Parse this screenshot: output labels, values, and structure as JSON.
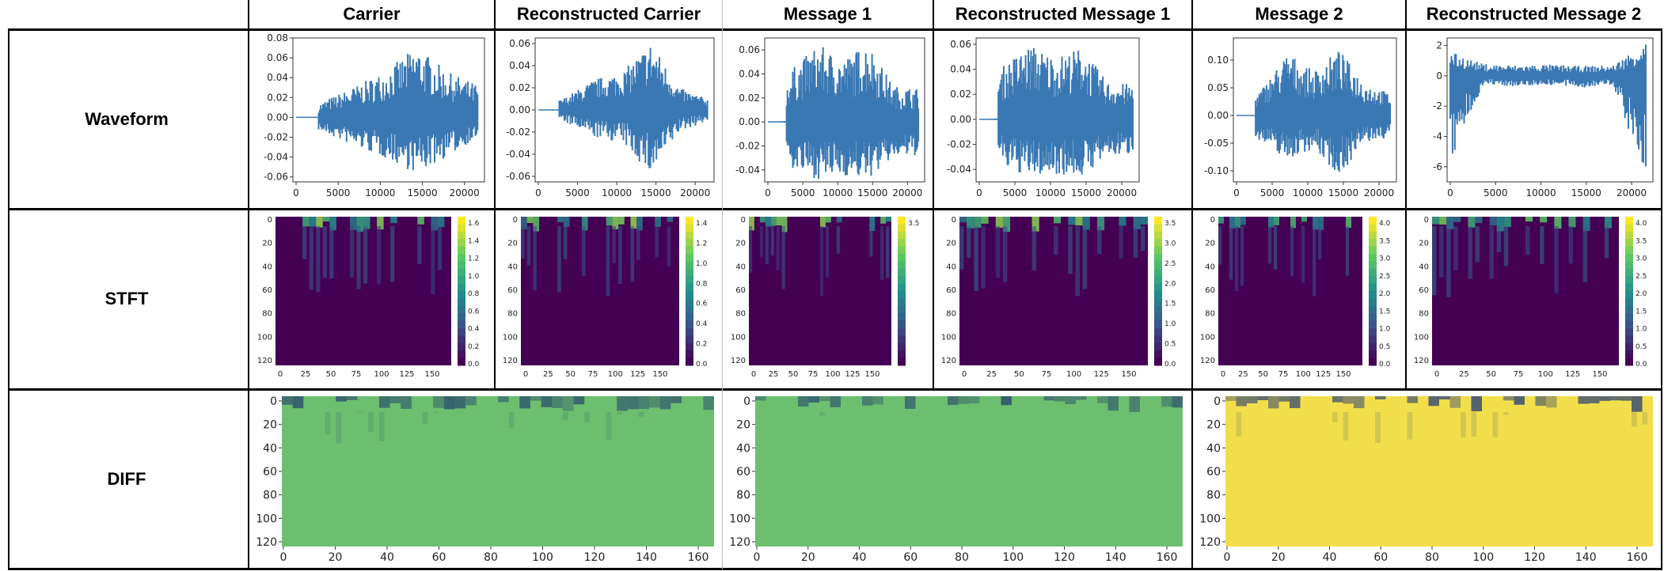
{
  "columns": [
    "Carrier",
    "Reconstructed Carrier",
    "Message 1",
    "Reconstructed Message 1",
    "Message 2",
    "Reconstructed Message 2"
  ],
  "rows": [
    "Waveform",
    "STFT",
    "DIFF"
  ],
  "colors": {
    "waveform": "#3a78b4",
    "viridis_low": "#440154",
    "viridis_mid": "#21918c",
    "viridis_high": "#fde725",
    "diff_green": "#6cbf6e",
    "diff_yellow": "#f1de4a"
  },
  "chart_data": [
    {
      "type": "line",
      "panel": "Carrier waveform",
      "xlim": [
        0,
        22000
      ],
      "ylim": [
        -0.065,
        0.08
      ],
      "xticks": [
        "0",
        "5000",
        "10000",
        "15000",
        "20000"
      ],
      "yticks": [
        "0.08",
        "0.06",
        "0.04",
        "0.02",
        "0.00",
        "-0.02",
        "-0.04",
        "-0.06"
      ],
      "envelope_pos": [
        0,
        0.018,
        0.032,
        0.048,
        0.072,
        0.046,
        0.033
      ],
      "envelope_neg": [
        0,
        -0.017,
        -0.03,
        -0.042,
        -0.057,
        -0.04,
        -0.02
      ]
    },
    {
      "type": "line",
      "panel": "Reconstructed Carrier waveform",
      "xlim": [
        0,
        22000
      ],
      "ylim": [
        -0.065,
        0.065
      ],
      "xticks": [
        "0",
        "5000",
        "10000",
        "15000",
        "20000"
      ],
      "yticks": [
        "0.06",
        "0.04",
        "0.02",
        "0.00",
        "-0.02",
        "-0.04",
        "-0.06"
      ],
      "envelope_pos": [
        0,
        0.012,
        0.028,
        0.035,
        0.062,
        0.02,
        0.01
      ],
      "envelope_neg": [
        0,
        -0.012,
        -0.025,
        -0.03,
        -0.06,
        -0.02,
        -0.01
      ]
    },
    {
      "type": "line",
      "panel": "Message 1 waveform",
      "xlim": [
        0,
        22000
      ],
      "ylim": [
        -0.05,
        0.07
      ],
      "xticks": [
        "0",
        "5000",
        "10000",
        "15000",
        "20000"
      ],
      "yticks": [
        "0.06",
        "0.04",
        "0.02",
        "0.00",
        "-0.02",
        "-0.04"
      ],
      "envelope_pos": [
        0,
        0.045,
        0.065,
        0.052,
        0.067,
        0.03,
        0.028
      ],
      "envelope_neg": [
        0,
        -0.04,
        -0.048,
        -0.045,
        -0.048,
        -0.03,
        -0.028
      ]
    },
    {
      "type": "line",
      "panel": "Reconstructed Message 1 waveform",
      "xlim": [
        0,
        22000
      ],
      "ylim": [
        -0.05,
        0.065
      ],
      "xticks": [
        "0",
        "5000",
        "10000",
        "15000",
        "20000"
      ],
      "yticks": [
        "0.06",
        "0.04",
        "0.02",
        "0.00",
        "-0.02",
        "-0.04"
      ],
      "envelope_pos": [
        0,
        0.045,
        0.06,
        0.05,
        0.058,
        0.03,
        0.028
      ],
      "envelope_neg": [
        0,
        -0.04,
        -0.046,
        -0.044,
        -0.046,
        -0.03,
        -0.028
      ]
    },
    {
      "type": "line",
      "panel": "Message 2 waveform",
      "xlim": [
        0,
        22000
      ],
      "ylim": [
        -0.12,
        0.14
      ],
      "xticks": [
        "0",
        "5000",
        "10000",
        "15000",
        "20000"
      ],
      "yticks": [
        "0.10",
        "0.05",
        "0.00",
        "-0.05",
        "-0.10"
      ],
      "envelope_pos": [
        0,
        0.05,
        0.115,
        0.08,
        0.12,
        0.06,
        0.04
      ],
      "envelope_neg": [
        0,
        -0.05,
        -0.08,
        -0.06,
        -0.11,
        -0.05,
        -0.04
      ]
    },
    {
      "type": "line",
      "panel": "Reconstructed Message 2 waveform",
      "xlim": [
        0,
        22000
      ],
      "ylim": [
        -7,
        2.5
      ],
      "xticks": [
        "0",
        "5000",
        "10000",
        "15000",
        "20000"
      ],
      "yticks": [
        "2",
        "0",
        "-2",
        "-4",
        "-6"
      ],
      "envelope_pos": [
        1.6,
        0.8,
        0.7,
        0.75,
        0.65,
        0.7,
        2.3
      ],
      "envelope_neg": [
        -6,
        -0.6,
        -0.7,
        -0.6,
        -0.8,
        -0.6,
        -7
      ]
    },
    {
      "type": "heatmap",
      "panel": "Carrier STFT",
      "xticks": [
        "0",
        "25",
        "50",
        "75",
        "100",
        "125",
        "150"
      ],
      "yticks": [
        "0",
        "20",
        "40",
        "60",
        "80",
        "100",
        "120"
      ],
      "colorbar_ticks": [
        "1.6",
        "1.4",
        "1.2",
        "1.0",
        "0.8",
        "0.6",
        "0.4",
        "0.2",
        "0.0"
      ]
    },
    {
      "type": "heatmap",
      "panel": "Reconstructed Carrier STFT",
      "xticks": [
        "0",
        "25",
        "50",
        "75",
        "100",
        "125",
        "150"
      ],
      "yticks": [
        "0",
        "20",
        "40",
        "60",
        "80",
        "100",
        "120"
      ],
      "colorbar_ticks": [
        "1.4",
        "1.2",
        "1.0",
        "0.8",
        "0.6",
        "0.4",
        "0.2",
        "0.0"
      ]
    },
    {
      "type": "heatmap",
      "panel": "Message 1 STFT",
      "xticks": [
        "0",
        "25",
        "50",
        "75",
        "100",
        "125",
        "150"
      ],
      "yticks": [
        "0",
        "20",
        "40",
        "60",
        "80",
        "100",
        "120"
      ],
      "colorbar_ticks": [
        "3.5"
      ]
    },
    {
      "type": "heatmap",
      "panel": "Reconstructed Message 1 STFT",
      "xticks": [
        "0",
        "25",
        "50",
        "75",
        "100",
        "125",
        "150"
      ],
      "yticks": [
        "0",
        "20",
        "40",
        "60",
        "80",
        "100",
        "120"
      ],
      "colorbar_ticks": [
        "3.5",
        "3.0",
        "2.5",
        "2.0",
        "1.5",
        "1.0",
        "0.5",
        "0.0"
      ]
    },
    {
      "type": "heatmap",
      "panel": "Message 2 STFT",
      "xticks": [
        "0",
        "25",
        "50",
        "75",
        "100",
        "125",
        "150"
      ],
      "yticks": [
        "0",
        "20",
        "40",
        "60",
        "80",
        "100",
        "120"
      ],
      "colorbar_ticks": [
        "4.0",
        "3.5",
        "3.0",
        "2.5",
        "2.0",
        "1.5",
        "1.0",
        "0.5",
        "0.0"
      ]
    },
    {
      "type": "heatmap",
      "panel": "Reconstructed Message 2 STFT",
      "xticks": [
        "0",
        "25",
        "50",
        "75",
        "100",
        "125",
        "150"
      ],
      "yticks": [
        "0",
        "20",
        "40",
        "60",
        "80",
        "100",
        "120"
      ],
      "colorbar_ticks": [
        "4.0",
        "3.5",
        "3.0",
        "2.5",
        "2.0",
        "1.5",
        "1.0",
        "0.5",
        "0.0"
      ]
    },
    {
      "type": "heatmap",
      "panel": "Carrier DIFF",
      "xticks": [
        "0",
        "20",
        "40",
        "60",
        "80",
        "100",
        "120",
        "140",
        "160"
      ],
      "yticks": [
        "0",
        "20",
        "40",
        "60",
        "80",
        "100",
        "120"
      ]
    },
    {
      "type": "heatmap",
      "panel": "Message 1 DIFF",
      "xticks": [
        "0",
        "20",
        "40",
        "60",
        "80",
        "100",
        "120",
        "140",
        "160"
      ],
      "yticks": [
        "0",
        "20",
        "40",
        "60",
        "80",
        "100",
        "120"
      ]
    },
    {
      "type": "heatmap",
      "panel": "Message 2 DIFF",
      "xticks": [
        "0",
        "20",
        "40",
        "60",
        "80",
        "100",
        "120",
        "140",
        "160"
      ],
      "yticks": [
        "0",
        "20",
        "40",
        "60",
        "80",
        "100",
        "120"
      ]
    }
  ]
}
